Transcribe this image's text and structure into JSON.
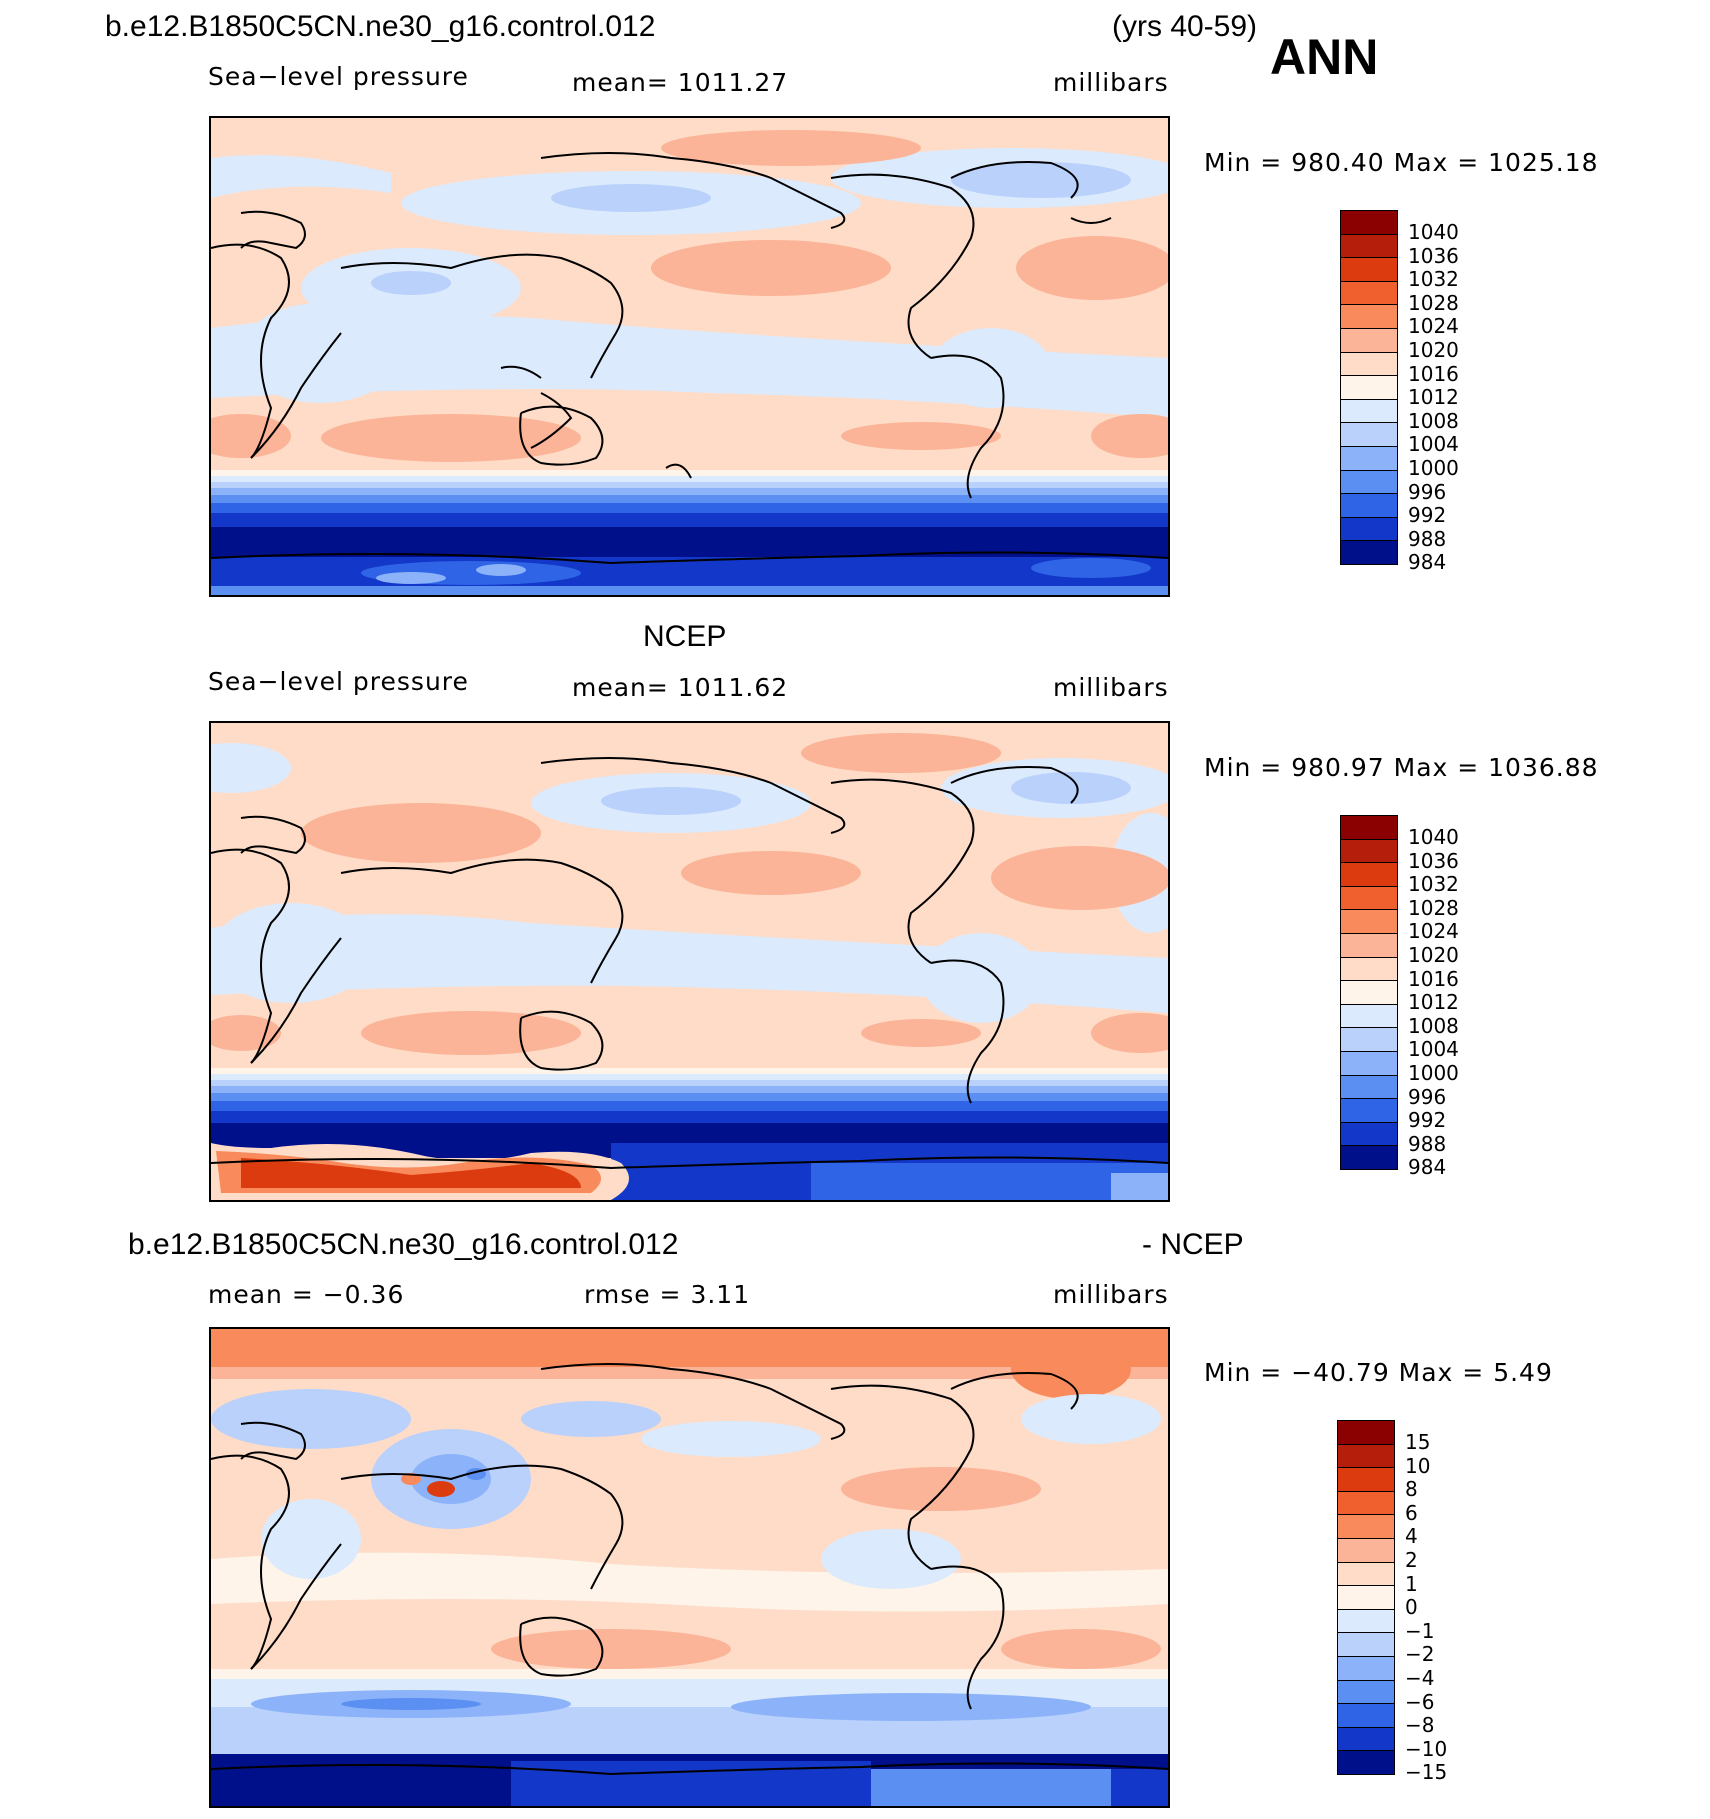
{
  "header": {
    "case": "b.e12.B1850C5CN.ne30_g16.control.012",
    "years": "(yrs 40-59)",
    "season": "ANN"
  },
  "panels": [
    {
      "id": "model",
      "field": "Sea−level pressure",
      "mean_text": "mean=  1011.27",
      "units": "millibars",
      "minmax_text": "Min  =  980.40  Max  =  1025.18",
      "colorbar_labels": [
        "1040",
        "1036",
        "1032",
        "1028",
        "1024",
        "1020",
        "1016",
        "1012",
        "1008",
        "1004",
        "1000",
        "996",
        "992",
        "988",
        "984"
      ]
    },
    {
      "id": "obs",
      "title": "NCEP",
      "field": "Sea−level pressure",
      "mean_text": "mean=  1011.62",
      "units": "millibars",
      "minmax_text": "Min  =  980.97  Max  =  1036.88",
      "colorbar_labels": [
        "1040",
        "1036",
        "1032",
        "1028",
        "1024",
        "1020",
        "1016",
        "1012",
        "1008",
        "1004",
        "1000",
        "996",
        "992",
        "988",
        "984"
      ]
    },
    {
      "id": "diff",
      "title_left": "b.e12.B1850C5CN.ne30_g16.control.012",
      "title_right": "- NCEP",
      "mean_text": "mean  =    −0.36",
      "rmse_text": "rmse  =     3.11",
      "units": "millibars",
      "minmax_text": "Min  =  −40.79  Max  =      5.49",
      "colorbar_labels": [
        "15",
        "10",
        "8",
        "6",
        "4",
        "2",
        "1",
        "0",
        "−1",
        "−2",
        "−4",
        "−6",
        "−8",
        "−10",
        "−15"
      ]
    }
  ],
  "colors": {
    "palette": [
      "#8b0000",
      "#b51e0b",
      "#db3b0f",
      "#f0602f",
      "#f88a5b",
      "#fbb497",
      "#fedcc8",
      "#fff4ea",
      "#dbeafc",
      "#b9d1fb",
      "#8cb3f9",
      "#5b8ff2",
      "#2e64e5",
      "#1337c8",
      "#000f8a"
    ],
    "coast": "#000000"
  }
}
